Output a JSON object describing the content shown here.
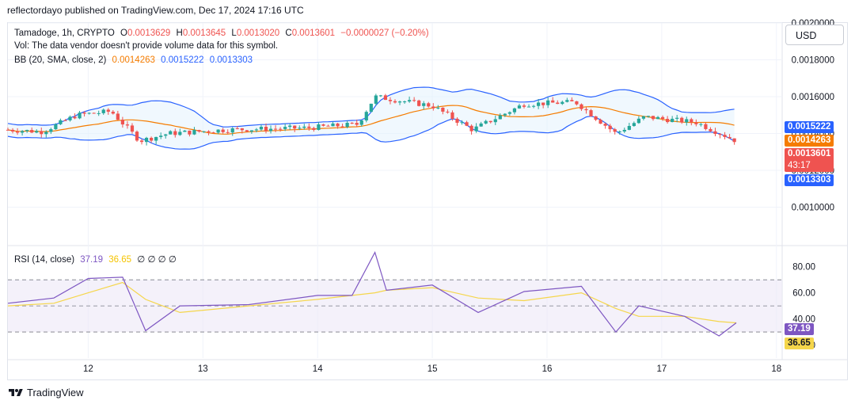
{
  "header": {
    "published": "reflectordayo published on TradingView.com, Dec 17, 2024 17:16 UTC"
  },
  "legend": {
    "symbol": "Tamadoge, 1h, CRYPTO",
    "o_label": "O",
    "o_value": "0.0013629",
    "h_label": "H",
    "h_value": "0.0013645",
    "l_label": "L",
    "l_value": "0.0013020",
    "c_label": "C",
    "c_value": "0.0013601",
    "change": "−0.0000027 (−0.20%)",
    "vol_note": "Vol: The data vendor doesn't provide volume data for this symbol.",
    "bb_label": "BB (20, SMA, close, 2)",
    "bb_basis": "0.0014263",
    "bb_upper": "0.0015222",
    "bb_lower": "0.0013303",
    "rsi_label": "RSI (14, close)",
    "rsi_value": "37.19",
    "rsi_ma": "36.65",
    "rsi_extra": "∅ ∅ ∅ ∅"
  },
  "currency_button": "USD",
  "price_tags": {
    "upper": "0.0015222",
    "basis": "0.0014263",
    "close": "0.0013601",
    "countdown": "43:17",
    "lower": "0.0013303",
    "rsi": "37.19",
    "rsi_ma": "36.65"
  },
  "footer": {
    "brand": "TradingView"
  },
  "colors": {
    "up": "#26a69a",
    "down": "#ef5350",
    "bb_band": "#2962ff",
    "bb_basis": "#f57c00",
    "bb_fill": "#e3f2fd",
    "rsi_line": "#7e57c2",
    "rsi_ma": "#f5d64b",
    "rsi_fill": "#ede7f6"
  },
  "chart_data": [
    {
      "type": "candlestick",
      "title": "Tamadoge, 1h, CRYPTO",
      "x_ticks": [
        "12",
        "13",
        "14",
        "15",
        "16",
        "17",
        "18"
      ],
      "y_ticks": [
        "0.0010000",
        "0.0012000",
        "0.0014000",
        "0.0016000",
        "0.0018000",
        "0.0020000"
      ],
      "ylim": [
        0.0008,
        0.002
      ],
      "series_points": [
        {
          "x": 11.3,
          "close": 0.00142
        },
        {
          "x": 11.6,
          "close": 0.00141
        },
        {
          "x": 11.9,
          "close": 0.0015
        },
        {
          "x": 12.2,
          "close": 0.00152
        },
        {
          "x": 12.45,
          "close": 0.00136
        },
        {
          "x": 12.7,
          "close": 0.0014
        },
        {
          "x": 13.2,
          "close": 0.00142
        },
        {
          "x": 13.9,
          "close": 0.00143
        },
        {
          "x": 14.35,
          "close": 0.00145
        },
        {
          "x": 14.5,
          "close": 0.0016
        },
        {
          "x": 14.7,
          "close": 0.00158
        },
        {
          "x": 15.0,
          "close": 0.00155
        },
        {
          "x": 15.35,
          "close": 0.00142
        },
        {
          "x": 15.8,
          "close": 0.00156
        },
        {
          "x": 16.25,
          "close": 0.00157
        },
        {
          "x": 16.6,
          "close": 0.0014
        },
        {
          "x": 16.85,
          "close": 0.00149
        },
        {
          "x": 17.3,
          "close": 0.00146
        },
        {
          "x": 17.65,
          "close": 0.00136
        }
      ],
      "bollinger": {
        "basis": 0.0014263,
        "upper": 0.0015222,
        "lower": 0.0013303
      }
    },
    {
      "type": "line",
      "title": "RSI (14, close)",
      "y_ticks": [
        "20.00",
        "40.00",
        "60.00",
        "80.00"
      ],
      "ylim": [
        10,
        95
      ],
      "bands": [
        30,
        50,
        70
      ],
      "x": [
        11.3,
        11.7,
        12.0,
        12.3,
        12.5,
        12.8,
        13.4,
        14.0,
        14.3,
        14.5,
        14.6,
        15.0,
        15.4,
        15.8,
        16.3,
        16.6,
        16.8,
        17.2,
        17.5,
        17.65
      ],
      "series": [
        {
          "name": "RSI",
          "values": [
            52,
            56,
            71,
            72,
            31,
            50,
            51,
            58,
            58,
            91,
            62,
            66,
            45,
            61,
            65,
            30,
            50,
            42,
            27,
            37
          ]
        },
        {
          "name": "MA",
          "values": [
            50,
            52,
            60,
            68,
            55,
            45,
            50,
            55,
            58,
            60,
            62,
            64,
            56,
            54,
            60,
            48,
            42,
            42,
            38,
            37
          ]
        }
      ]
    }
  ]
}
